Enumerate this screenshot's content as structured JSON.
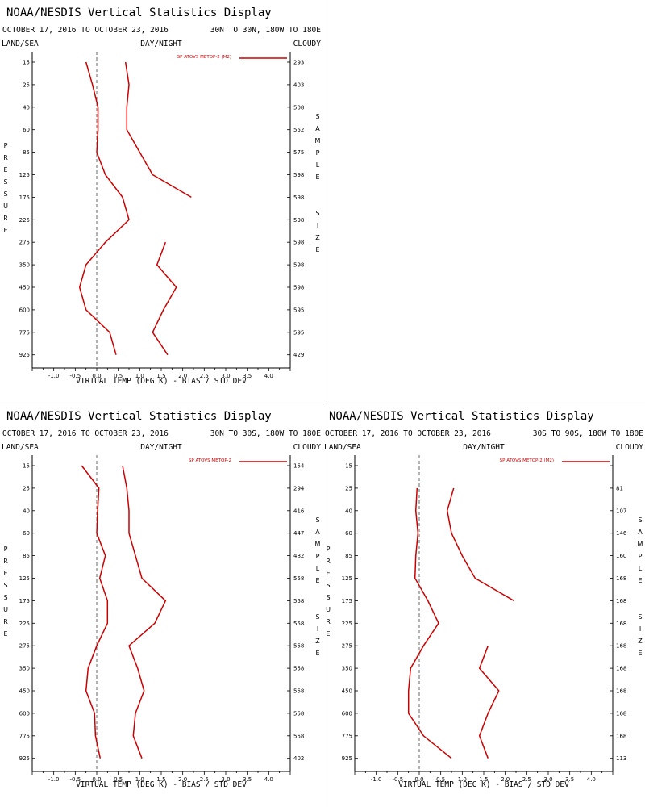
{
  "chart_data": [
    {
      "type": "line",
      "title": "NOAA/NESDIS Vertical Statistics Display",
      "subtitle": "OCTOBER 17, 2016 TO OCTOBER 23, 2016",
      "region": "30N TO 30N, 180W TO 180E",
      "header_left": "LAND/SEA",
      "header_center": "DAY/NIGHT",
      "header_right": "CLOUDY",
      "xlabel": "VIRTUAL TEMP (DEG K) - BIAS / STD DEV",
      "ylabel": "PRESSURE",
      "ylabel_right": "SAMPLE SIZE",
      "legend": "SP ATOVS METOP-2 (M2)",
      "line_color": "#cc0000",
      "xlim": [
        -1.5,
        4.5
      ],
      "x_ticks": [
        "-1.0",
        "-0.5",
        "0.0",
        "0.5",
        "1.0",
        "1.5",
        "2.0",
        "2.5",
        "3.0",
        "3.5",
        "4.0"
      ],
      "pressure_levels": [
        15,
        25,
        40,
        60,
        85,
        125,
        175,
        225,
        275,
        350,
        450,
        600,
        775,
        925
      ],
      "series": [
        {
          "values": [
            -0.25,
            -0.1,
            0.03,
            0.03,
            0.0,
            0.2,
            0.6,
            0.75,
            0.2,
            -0.25,
            -0.4,
            -0.25,
            0.3,
            0.45
          ]
        },
        {
          "values": [
            0.67,
            0.75,
            0.7,
            0.7,
            1.0,
            1.3,
            2.2,
            null,
            1.6,
            1.4,
            1.85,
            1.55,
            1.3,
            1.65
          ]
        }
      ],
      "sample_size": [
        "293",
        "403",
        "508",
        "552",
        "575",
        "598",
        "598",
        "598",
        "598",
        "598",
        "598",
        "595",
        "595",
        "429"
      ]
    },
    {
      "type": "line",
      "title": "NOAA/NESDIS Vertical Statistics Display",
      "subtitle": "OCTOBER 17, 2016 TO OCTOBER 23, 2016",
      "region": "30N TO 30S, 180W TO 180E",
      "header_left": "LAND/SEA",
      "header_center": "DAY/NIGHT",
      "header_right": "CLOUDY",
      "xlabel": "VIRTUAL TEMP (DEG K) - BIAS / STD DEV",
      "ylabel": "PRESSURE",
      "ylabel_right": "SAMPLE SIZE",
      "legend": "SP ATOVS METOP-2",
      "line_color": "#cc0000",
      "xlim": [
        -1.5,
        4.5
      ],
      "x_ticks": [
        "-1.0",
        "-0.5",
        "0.0",
        "0.5",
        "1.0",
        "1.5",
        "2.0",
        "2.5",
        "3.0",
        "3.5",
        "4.0"
      ],
      "pressure_levels": [
        15,
        25,
        40,
        60,
        85,
        125,
        175,
        225,
        275,
        350,
        450,
        600,
        775,
        925
      ],
      "series": [
        {
          "values": [
            -0.35,
            0.05,
            0.02,
            0.0,
            0.2,
            0.07,
            0.25,
            0.25,
            0.0,
            -0.2,
            -0.25,
            -0.05,
            -0.03,
            0.08
          ]
        },
        {
          "values": [
            0.6,
            0.7,
            0.75,
            0.75,
            0.9,
            1.05,
            1.6,
            1.35,
            0.75,
            0.95,
            1.1,
            0.9,
            0.85,
            1.05
          ]
        }
      ],
      "sample_size": [
        "154",
        "294",
        "416",
        "447",
        "482",
        "558",
        "558",
        "558",
        "558",
        "558",
        "558",
        "558",
        "558",
        "402"
      ]
    },
    {
      "type": "line",
      "title": "NOAA/NESDIS Vertical Statistics Display",
      "subtitle": "OCTOBER 17, 2016 TO OCTOBER 23, 2016",
      "region": "30S TO 90S, 180W TO 180E",
      "header_left": "LAND/SEA",
      "header_center": "DAY/NIGHT",
      "header_right": "CLOUDY",
      "xlabel": "VIRTUAL TEMP (DEG K) - BIAS / STD DEV",
      "ylabel": "PRESSURE",
      "ylabel_right": "SAMPLE SIZE",
      "legend": "SP ATOVS METOP-2 (M2)",
      "line_color": "#cc0000",
      "xlim": [
        -1.5,
        4.5
      ],
      "x_ticks": [
        "-1.0",
        "-0.5",
        "0.0",
        "0.5",
        "1.0",
        "1.5",
        "2.0",
        "2.5",
        "3.0",
        "3.5",
        "4.0"
      ],
      "pressure_levels": [
        15,
        25,
        40,
        60,
        85,
        125,
        175,
        225,
        275,
        350,
        450,
        600,
        775,
        925
      ],
      "series": [
        {
          "values": [
            null,
            -0.05,
            -0.08,
            -0.03,
            -0.08,
            -0.1,
            0.2,
            0.45,
            0.1,
            -0.2,
            -0.25,
            -0.25,
            0.1,
            0.75
          ]
        },
        {
          "values": [
            null,
            0.8,
            0.65,
            0.75,
            1.0,
            1.3,
            2.2,
            null,
            1.6,
            1.4,
            1.85,
            1.6,
            1.4,
            1.6
          ]
        }
      ],
      "sample_size": [
        "",
        "81",
        "107",
        "146",
        "160",
        "168",
        "168",
        "168",
        "168",
        "168",
        "168",
        "168",
        "168",
        "113"
      ]
    }
  ]
}
